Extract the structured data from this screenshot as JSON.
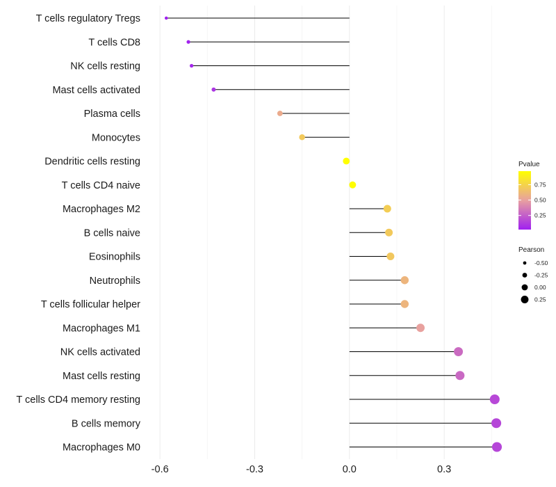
{
  "chart_data": {
    "type": "lollipop",
    "title": "",
    "xlabel": "",
    "ylabel": "",
    "xlim": [
      -0.64,
      0.5
    ],
    "xticks": [
      -0.6,
      -0.3,
      0.0,
      0.3
    ],
    "xtick_labels": [
      "-0.6",
      "-0.3",
      "0.0",
      "0.3"
    ],
    "grid": true,
    "legend_position": "right",
    "points": [
      {
        "label": "T cells regulatory  Tregs",
        "pearson": -0.58,
        "pvalue": 0.02
      },
      {
        "label": "T cells CD8",
        "pearson": -0.51,
        "pvalue": 0.03
      },
      {
        "label": "NK cells resting",
        "pearson": -0.5,
        "pvalue": 0.05
      },
      {
        "label": "Mast cells activated",
        "pearson": -0.43,
        "pvalue": 0.1
      },
      {
        "label": "Plasma cells",
        "pearson": -0.22,
        "pvalue": 0.55
      },
      {
        "label": "Monocytes",
        "pearson": -0.15,
        "pvalue": 0.7
      },
      {
        "label": "Dendritic cells resting",
        "pearson": -0.01,
        "pvalue": 0.97
      },
      {
        "label": "T cells CD4 naive",
        "pearson": 0.01,
        "pvalue": 0.96
      },
      {
        "label": "Macrophages M2",
        "pearson": 0.12,
        "pvalue": 0.72
      },
      {
        "label": "B cells naive",
        "pearson": 0.125,
        "pvalue": 0.7
      },
      {
        "label": "Eosinophils",
        "pearson": 0.13,
        "pvalue": 0.69
      },
      {
        "label": "Neutrophils",
        "pearson": 0.175,
        "pvalue": 0.6
      },
      {
        "label": "T cells follicular helper",
        "pearson": 0.175,
        "pvalue": 0.6
      },
      {
        "label": "Macrophages M1",
        "pearson": 0.225,
        "pvalue": 0.5
      },
      {
        "label": "NK cells activated",
        "pearson": 0.345,
        "pvalue": 0.3
      },
      {
        "label": "Mast cells resting",
        "pearson": 0.35,
        "pvalue": 0.29
      },
      {
        "label": "T cells CD4 memory resting",
        "pearson": 0.46,
        "pvalue": 0.17
      },
      {
        "label": "B cells memory",
        "pearson": 0.465,
        "pvalue": 0.16
      },
      {
        "label": "Macrophages M0",
        "pearson": 0.467,
        "pvalue": 0.16
      }
    ],
    "legend_color": {
      "title": "Pvalue",
      "min": 0.02,
      "max": 0.97,
      "ticks": [
        0.25,
        0.5,
        0.75
      ],
      "tick_labels": [
        "0.25",
        "0.50",
        "0.75"
      ],
      "color_low": "#a020f0",
      "color_mid": "#e8a0a0",
      "color_high": "#ffff00"
    },
    "legend_size": {
      "title": "Pearson",
      "values": [
        -0.5,
        -0.25,
        0.0,
        0.25
      ],
      "labels": [
        "-0.50",
        "-0.25",
        "0.00",
        "0.25"
      ]
    }
  }
}
